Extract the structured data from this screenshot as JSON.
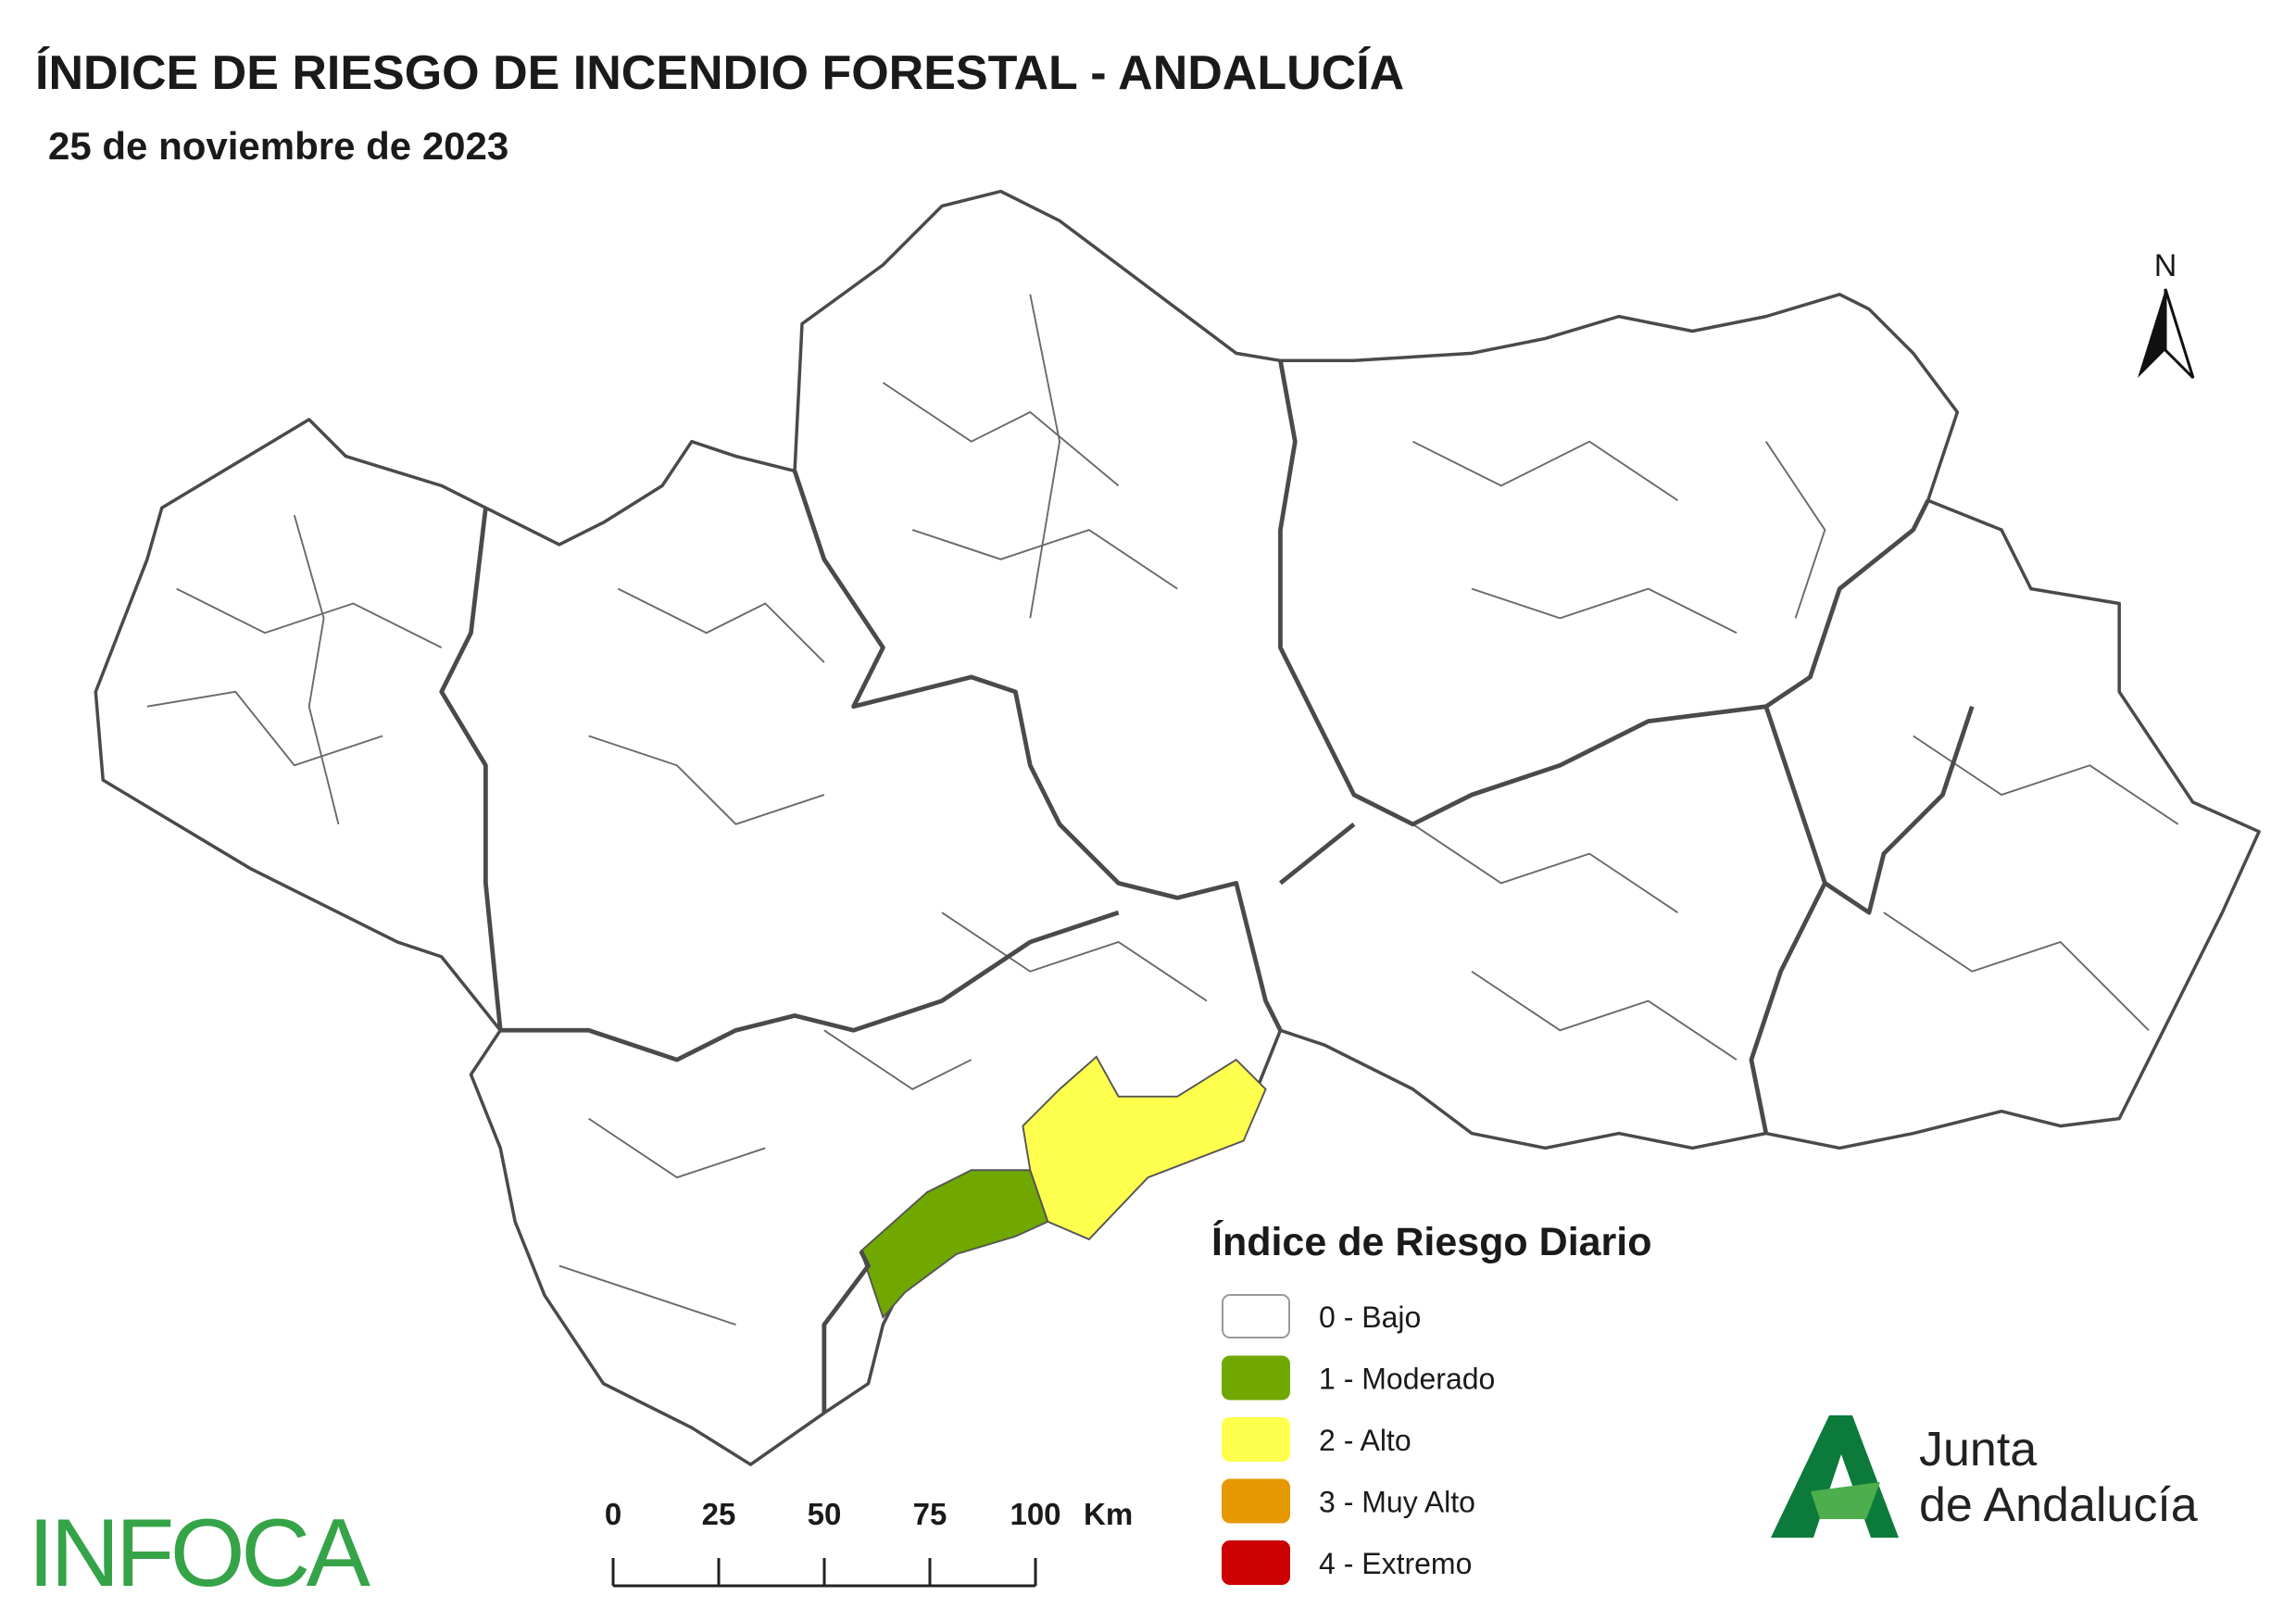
{
  "header": {
    "title": "ÍNDICE DE RIESGO DE INCENDIO FORESTAL - ANDALUCÍA",
    "subtitle": "25 de noviembre de 2023"
  },
  "legend": {
    "title": "Índice de Riesgo Diario",
    "items": [
      {
        "label": "0 - Bajo",
        "color": "#ffffff"
      },
      {
        "label": "1 - Moderado",
        "color": "#70a800"
      },
      {
        "label": "2 - Alto",
        "color": "#ffff4d"
      },
      {
        "label": "3 - Muy Alto",
        "color": "#e69800"
      },
      {
        "label": "4 - Extremo",
        "color": "#cc0000"
      }
    ]
  },
  "scale_bar": {
    "ticks": [
      0,
      25,
      50,
      75,
      100
    ],
    "unit": "Km"
  },
  "north": "N",
  "logos": {
    "infoca": "INFOCA",
    "junta_line1": "Junta",
    "junta_line2": "de Andalucía"
  }
}
